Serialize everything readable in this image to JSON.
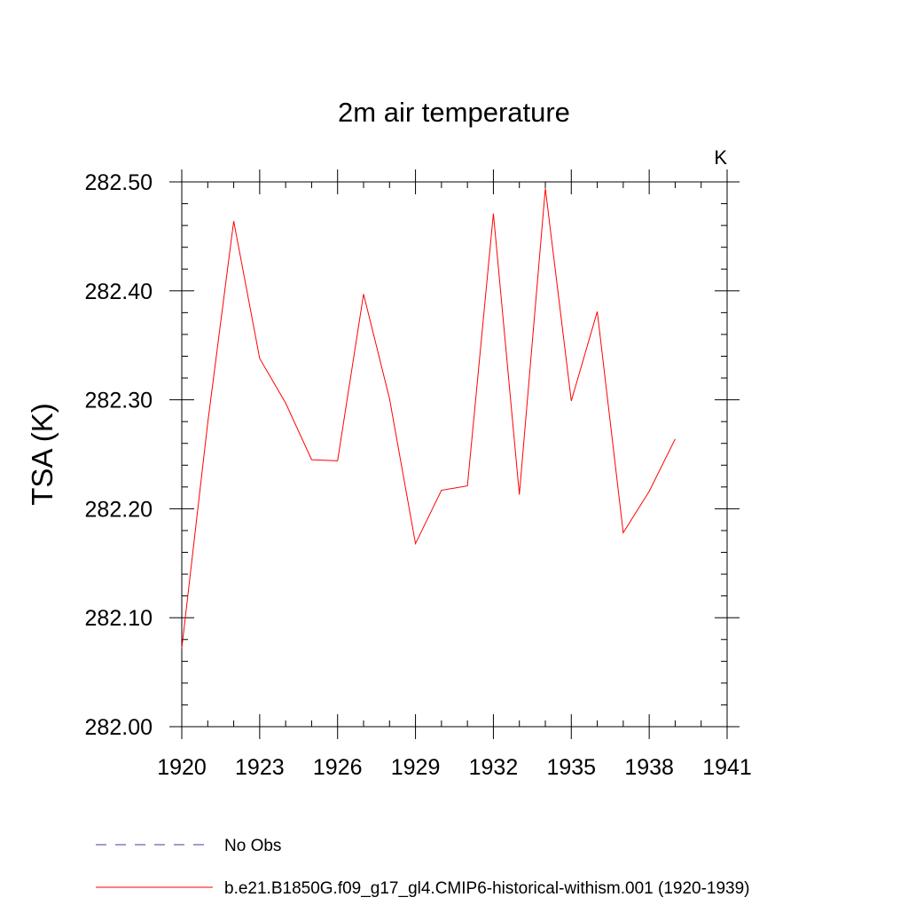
{
  "chart_data": {
    "type": "line",
    "title": "2m air temperature",
    "units_label": "K",
    "xlabel": "",
    "ylabel": "TSA  (K)",
    "xlim": [
      1920,
      1941
    ],
    "ylim": [
      282.0,
      282.5
    ],
    "x_ticks": [
      1920,
      1923,
      1926,
      1929,
      1932,
      1935,
      1938,
      1941
    ],
    "y_ticks": [
      "282.00",
      "282.10",
      "282.20",
      "282.30",
      "282.40",
      "282.50"
    ],
    "grid": false,
    "legend_position": "bottom",
    "legend": [
      {
        "label": "No Obs",
        "color": "#4a3a9a",
        "style": "dashed"
      },
      {
        "label": "b.e21.B1850G.f09_g17_gl4.CMIP6-historical-withism.001 (1920-1939)",
        "color": "#ff0000",
        "style": "solid"
      }
    ],
    "series": [
      {
        "name": "b.e21.B1850G.f09_g17_gl4.CMIP6-historical-withism.001 (1920-1939)",
        "color": "#ff0000",
        "x": [
          1920,
          1921,
          1922,
          1923,
          1924,
          1925,
          1926,
          1927,
          1928,
          1929,
          1930,
          1931,
          1932,
          1933,
          1934,
          1935,
          1936,
          1937,
          1938,
          1939
        ],
        "y": [
          282.072,
          282.279,
          282.464,
          282.338,
          282.297,
          282.245,
          282.244,
          282.397,
          282.301,
          282.168,
          282.217,
          282.221,
          282.471,
          282.213,
          282.494,
          282.299,
          282.381,
          282.178,
          282.216,
          282.264
        ]
      }
    ]
  }
}
